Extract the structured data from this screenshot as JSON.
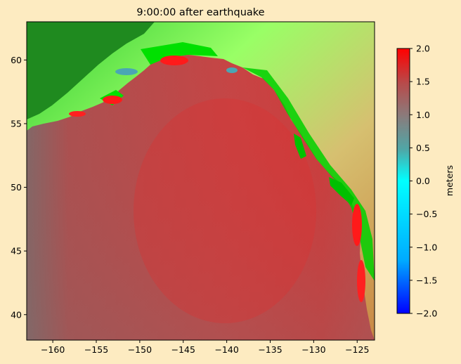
{
  "chart_data": {
    "type": "heatmap",
    "title": "9:00:00 after earthquake",
    "xlabel": "",
    "ylabel": "",
    "xlim": [
      -163,
      -123
    ],
    "ylim": [
      38,
      63
    ],
    "x_ticks": [
      -160,
      -155,
      -150,
      -145,
      -140,
      -135,
      -130,
      -125
    ],
    "x_tick_labels": [
      "−160",
      "−155",
      "−150",
      "−145",
      "−140",
      "−135",
      "−130",
      "−125"
    ],
    "y_ticks": [
      40,
      45,
      50,
      55,
      60
    ],
    "y_tick_labels": [
      "40",
      "45",
      "50",
      "55",
      "60"
    ],
    "grid": false,
    "colorbar": {
      "label": "meters",
      "range": [
        -2.0,
        2.0
      ],
      "ticks": [
        2.0,
        1.5,
        1.0,
        0.5,
        0.0,
        -0.5,
        -1.0,
        -1.5,
        -2.0
      ],
      "tick_labels": [
        "2.0",
        "1.5",
        "1.0",
        "0.5",
        "0.0",
        "−0.5",
        "−1.0",
        "−1.5",
        "−2.0"
      ],
      "colors": [
        "#0000ff",
        "#00aaff",
        "#00ffff",
        "#50a6a6",
        "#8c7a7a",
        "#b84a4a",
        "#ff0000"
      ]
    },
    "land_colors": [
      "#1f8a1f",
      "#00e000",
      "#99ff66",
      "#c8b060",
      "#cc8a40"
    ],
    "background_color": "#fdebc1"
  }
}
